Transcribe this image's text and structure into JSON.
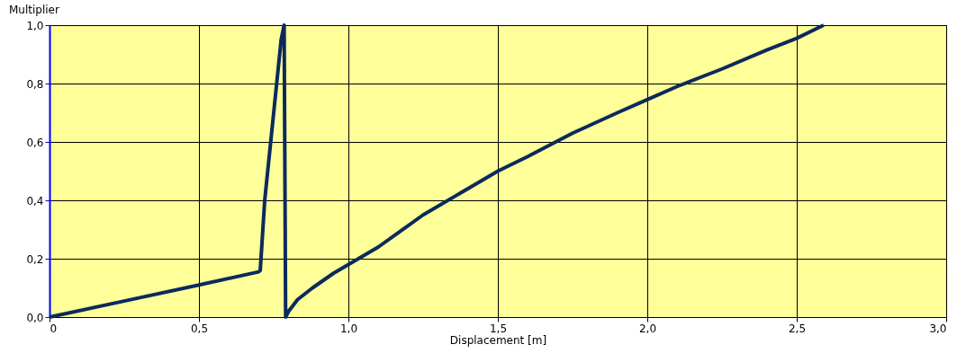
{
  "chart_data": {
    "type": "line",
    "xlabel": "Displacement [m]",
    "ylabel": "Multiplier",
    "series": [
      {
        "color": "#0b2a5c",
        "x": [
          0,
          0.25,
          0.5,
          0.7,
          0.705,
          0.72,
          0.74,
          0.76,
          0.775,
          0.785,
          0.79,
          0.8,
          0.83,
          0.88,
          0.95,
          1.0,
          1.1,
          1.25,
          1.4,
          1.5,
          1.6,
          1.75,
          1.9,
          2.0,
          2.1,
          2.25,
          2.4,
          2.5,
          2.59
        ],
        "values": [
          0,
          0.055,
          0.11,
          0.155,
          0.16,
          0.4,
          0.6,
          0.8,
          0.95,
          1.0,
          0.0,
          0.02,
          0.06,
          0.1,
          0.15,
          0.18,
          0.24,
          0.35,
          0.44,
          0.5,
          0.55,
          0.63,
          0.7,
          0.745,
          0.79,
          0.85,
          0.915,
          0.955,
          1.0
        ]
      }
    ],
    "xlim": [
      0,
      3.0
    ],
    "xticks": [
      {
        "value": 0,
        "label": "0"
      },
      {
        "value": 0.5,
        "label": "0,5"
      },
      {
        "value": 1.0,
        "label": "1,0"
      },
      {
        "value": 1.5,
        "label": "1,5"
      },
      {
        "value": 2.0,
        "label": "2,0"
      },
      {
        "value": 2.5,
        "label": "2,5"
      },
      {
        "value": 3.0,
        "label": "3,0"
      }
    ],
    "ylim": [
      0,
      1.0
    ],
    "yticks": [
      {
        "value": 0,
        "label": "0,0"
      },
      {
        "value": 0.2,
        "label": "0,2"
      },
      {
        "value": 0.4,
        "label": "0,4"
      },
      {
        "value": 0.6,
        "label": "0,6"
      },
      {
        "value": 0.8,
        "label": "0,8"
      },
      {
        "value": 1.0,
        "label": "1,0"
      }
    ],
    "grid": true,
    "marker": "none",
    "line_style": "solid"
  }
}
